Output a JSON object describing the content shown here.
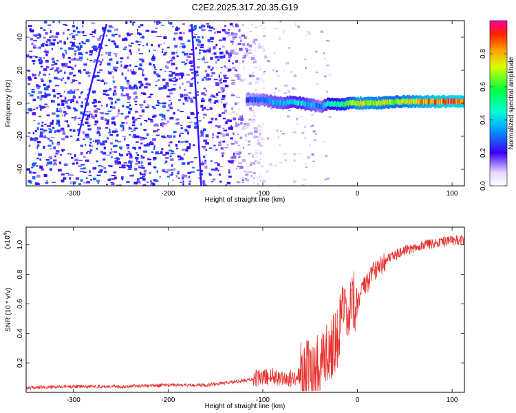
{
  "title": "C2E2.2025.317.20.35.G19",
  "chart_data": [
    {
      "type": "heatmap",
      "name": "spectrogram",
      "title": "C2E2.2025.317.20.35.G19",
      "xlabel": "Height of straight line (km)",
      "ylabel": "Frequency (Hz)",
      "xlim": [
        -350,
        113
      ],
      "ylim": [
        -50,
        50
      ],
      "xticks": [
        -300,
        -200,
        -100,
        0,
        100
      ],
      "yticks": [
        -40,
        -20,
        0,
        20,
        40
      ],
      "noise_region_x": [
        -350,
        -100
      ],
      "signal_band": {
        "x": [
          -118,
          -100,
          -90,
          -80,
          -70,
          -60,
          -50,
          -40,
          -30,
          -20,
          -10,
          0,
          20,
          40,
          60,
          80,
          100,
          113
        ],
        "freq_hz": [
          2,
          2,
          1,
          0,
          1,
          0,
          -1,
          -2,
          0,
          -1,
          0,
          0,
          0,
          1,
          1,
          1,
          1,
          1
        ],
        "amplitude": [
          0.25,
          0.3,
          0.35,
          0.35,
          0.4,
          0.4,
          0.35,
          0.3,
          0.45,
          0.5,
          0.6,
          0.75,
          0.7,
          0.65,
          0.75,
          0.85,
          0.9,
          0.85
        ]
      },
      "colorbar": {
        "label": "Normalized spectral amplitude",
        "range": [
          0,
          1
        ],
        "ticks": [
          "0.0",
          "0.2",
          "0.4",
          "0.6",
          "0.8"
        ],
        "tick_values": [
          0,
          0.2,
          0.4,
          0.6,
          0.8
        ]
      }
    },
    {
      "type": "line",
      "name": "snr",
      "xlabel": "Height of straight line (km)",
      "ylabel": "SNR (10 * v/v)",
      "scale_label": "(x10",
      "scale_exponent": "4",
      "scale_suffix": ")",
      "xlim": [
        -350,
        113
      ],
      "ylim": [
        0,
        1.12
      ],
      "xticks": [
        -300,
        -200,
        -100,
        0,
        100
      ],
      "yticks": [
        "0.2",
        "0.4",
        "0.6",
        "0.8",
        "1.0"
      ],
      "ytick_values": [
        0.2,
        0.4,
        0.6,
        0.8,
        1.0
      ],
      "color": "#e8302c",
      "series": [
        {
          "name": "SNR",
          "x": [
            -350,
            -300,
            -250,
            -200,
            -160,
            -130,
            -110,
            -100,
            -90,
            -80,
            -70,
            -60,
            -50,
            -40,
            -30,
            -20,
            -15,
            -10,
            -5,
            0,
            5,
            10,
            15,
            20,
            30,
            40,
            50,
            60,
            70,
            80,
            90,
            100,
            110,
            113
          ],
          "y": [
            0.03,
            0.04,
            0.04,
            0.05,
            0.05,
            0.07,
            0.09,
            0.1,
            0.11,
            0.1,
            0.09,
            0.12,
            0.15,
            0.2,
            0.28,
            0.4,
            0.55,
            0.45,
            0.6,
            0.62,
            0.7,
            0.72,
            0.8,
            0.85,
            0.9,
            0.93,
            0.96,
            0.98,
            1.0,
            1.01,
            1.02,
            1.03,
            1.03,
            1.04
          ]
        }
      ]
    }
  ],
  "colors": {
    "line": "#e8302c",
    "noise": "#6a1dee",
    "axes": "#000000"
  }
}
